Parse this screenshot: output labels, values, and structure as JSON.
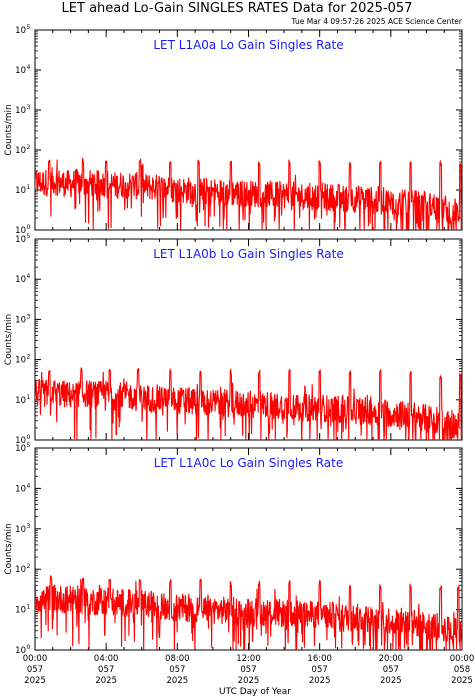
{
  "page": {
    "title": "LET ahead Lo-Gain SINGLES RATES Data for 2025-057",
    "timestamp": "Tue Mar  4 09:57:26 2025 ACE Science Center",
    "xlabel": "UTC Day of Year",
    "ylabel": "Counts/min",
    "line_color": "#ff0000",
    "panel_title_color": "#1a1aff"
  },
  "x_ticks": [
    {
      "time": "00:00",
      "day": "057",
      "year": "2025",
      "hours": 0
    },
    {
      "time": "04:00",
      "day": "057",
      "year": "2025",
      "hours": 4
    },
    {
      "time": "08:00",
      "day": "057",
      "year": "2025",
      "hours": 8
    },
    {
      "time": "12:00",
      "day": "057",
      "year": "2025",
      "hours": 12
    },
    {
      "time": "16:00",
      "day": "057",
      "year": "2025",
      "hours": 16
    },
    {
      "time": "20:00",
      "day": "057",
      "year": "2025",
      "hours": 20
    },
    {
      "time": "00:00",
      "day": "058",
      "year": "2025",
      "hours": 24
    }
  ],
  "chart_data": [
    {
      "type": "line",
      "title": "LET L1A0a Lo Gain Singles Rate",
      "ylabel": "Counts/min",
      "xlabel": "UTC Day of Year",
      "y_scale": "log",
      "ylim": [
        1,
        100000
      ],
      "xlim_hours": [
        0,
        24
      ],
      "series": [
        {
          "x_hours": [
            0,
            0.5,
            1,
            1.5,
            2,
            2.5,
            3,
            3.5,
            4,
            4.5,
            5,
            5.5,
            6,
            6.5,
            7,
            7.5,
            8,
            8.5,
            9,
            9.5,
            10,
            10.5,
            11,
            11.5,
            12,
            12.5,
            13,
            13.5,
            14,
            14.5,
            15,
            15.5,
            16,
            16.5,
            17,
            17.5,
            18,
            18.5,
            19,
            19.5,
            20,
            20.5,
            21,
            21.5,
            22,
            22.5,
            23,
            23.5,
            24
          ],
          "values": [
            16,
            15,
            17,
            15,
            14,
            16,
            15,
            14,
            15,
            13,
            14,
            13,
            12,
            12,
            11,
            11,
            10,
            10,
            9.5,
            9.5,
            9,
            9,
            8.5,
            8.5,
            8,
            8,
            8,
            7.5,
            7.5,
            7.5,
            7,
            7,
            7,
            6.5,
            6.5,
            6,
            6,
            6,
            5.5,
            5.5,
            5,
            5,
            4.5,
            4.5,
            4,
            4,
            3.5,
            3,
            2.5
          ],
          "spikes_hours": [
            0.8,
            2.7,
            4.0,
            5.9,
            7.6,
            9.2,
            11.0,
            12.6,
            14.3,
            16.0,
            17.7,
            19.4,
            21.1,
            22.8,
            23.9
          ],
          "spike_values": [
            50,
            55,
            55,
            55,
            50,
            50,
            50,
            50,
            50,
            50,
            50,
            50,
            45,
            45,
            40
          ]
        }
      ]
    },
    {
      "type": "line",
      "title": "LET L1A0b Lo Gain Singles Rate",
      "ylabel": "Counts/min",
      "xlabel": "UTC Day of Year",
      "y_scale": "log",
      "ylim": [
        1,
        100000
      ],
      "xlim_hours": [
        0,
        24
      ],
      "series": [
        {
          "x_hours": [
            0,
            0.5,
            1,
            1.5,
            2,
            2.5,
            3,
            3.5,
            4,
            4.5,
            5,
            5.5,
            6,
            6.5,
            7,
            7.5,
            8,
            8.5,
            9,
            9.5,
            10,
            10.5,
            11,
            11.5,
            12,
            12.5,
            13,
            13.5,
            14,
            14.5,
            15,
            15.5,
            16,
            16.5,
            17,
            17.5,
            18,
            18.5,
            19,
            19.5,
            20,
            20.5,
            21,
            21.5,
            22,
            22.5,
            23,
            23.5,
            24
          ],
          "values": [
            15,
            14,
            16,
            14,
            13,
            15,
            14,
            13,
            14,
            12,
            13,
            12,
            11,
            11,
            10,
            10,
            9.5,
            9.5,
            9,
            9,
            8.5,
            8.5,
            8,
            8,
            7.5,
            7.5,
            7.5,
            7,
            7,
            7,
            6.5,
            6.5,
            6.5,
            6,
            6,
            5.5,
            5.5,
            5.5,
            5,
            5,
            4.5,
            4.5,
            4,
            4,
            3.5,
            3.5,
            3,
            2.5,
            2
          ],
          "spikes_hours": [
            0.8,
            2.6,
            4.2,
            5.8,
            7.6,
            9.3,
            11.0,
            12.6,
            14.3,
            16.0,
            17.7,
            19.4,
            21.1,
            22.8,
            23.9
          ],
          "spike_values": [
            50,
            55,
            55,
            55,
            50,
            50,
            50,
            50,
            50,
            50,
            50,
            50,
            45,
            40,
            40
          ]
        }
      ]
    },
    {
      "type": "line",
      "title": "LET L1A0c Lo Gain Singles Rate",
      "ylabel": "Counts/min",
      "xlabel": "UTC Day of Year",
      "y_scale": "log",
      "ylim": [
        1,
        100000
      ],
      "xlim_hours": [
        0,
        24
      ],
      "series": [
        {
          "x_hours": [
            0,
            0.5,
            1,
            1.5,
            2,
            2.5,
            3,
            3.5,
            4,
            4.5,
            5,
            5.5,
            6,
            6.5,
            7,
            7.5,
            8,
            8.5,
            9,
            9.5,
            10,
            10.5,
            11,
            11.5,
            12,
            12.5,
            13,
            13.5,
            14,
            14.5,
            15,
            15.5,
            16,
            16.5,
            17,
            17.5,
            18,
            18.5,
            19,
            19.5,
            20,
            20.5,
            21,
            21.5,
            22,
            22.5,
            23,
            23.5,
            24
          ],
          "values": [
            18,
            17,
            20,
            18,
            17,
            18,
            16,
            16,
            17,
            15,
            15,
            14,
            14,
            13,
            12,
            12,
            11,
            11,
            10,
            10,
            10,
            9.5,
            9.5,
            9,
            9,
            8.5,
            8.5,
            8.5,
            8,
            8,
            7.5,
            7.5,
            7.5,
            7,
            7,
            6.5,
            6.5,
            6,
            6,
            5.5,
            5.5,
            5,
            5,
            4.5,
            4,
            4,
            3.5,
            3,
            2.5
          ],
          "spikes_hours": [
            0.9,
            2.7,
            4.2,
            5.9,
            7.6,
            9.3,
            11.0,
            12.6,
            14.3,
            16.0,
            17.7,
            19.4,
            21.1,
            22.8,
            23.8
          ],
          "spike_values": [
            60,
            55,
            55,
            50,
            50,
            50,
            45,
            45,
            45,
            45,
            40,
            40,
            40,
            35,
            35
          ]
        }
      ]
    }
  ]
}
